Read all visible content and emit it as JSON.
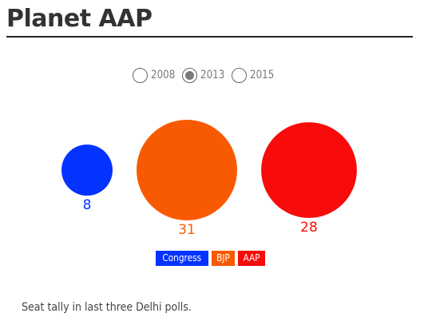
{
  "page": {
    "title": "Planet AAP",
    "caption": "Seat tally in last three Delhi polls."
  },
  "year_selector": {
    "options": [
      "2008",
      "2013",
      "2015"
    ],
    "selected": "2013"
  },
  "chart_data": {
    "type": "bubble",
    "title": "",
    "categories": [
      "Congress",
      "BJP",
      "AAP"
    ],
    "values": [
      8,
      31,
      28
    ],
    "colors": [
      "#0433ff",
      "#f85a02",
      "#f70b0b"
    ],
    "legend_placement": "bottom-center",
    "grid": false
  }
}
